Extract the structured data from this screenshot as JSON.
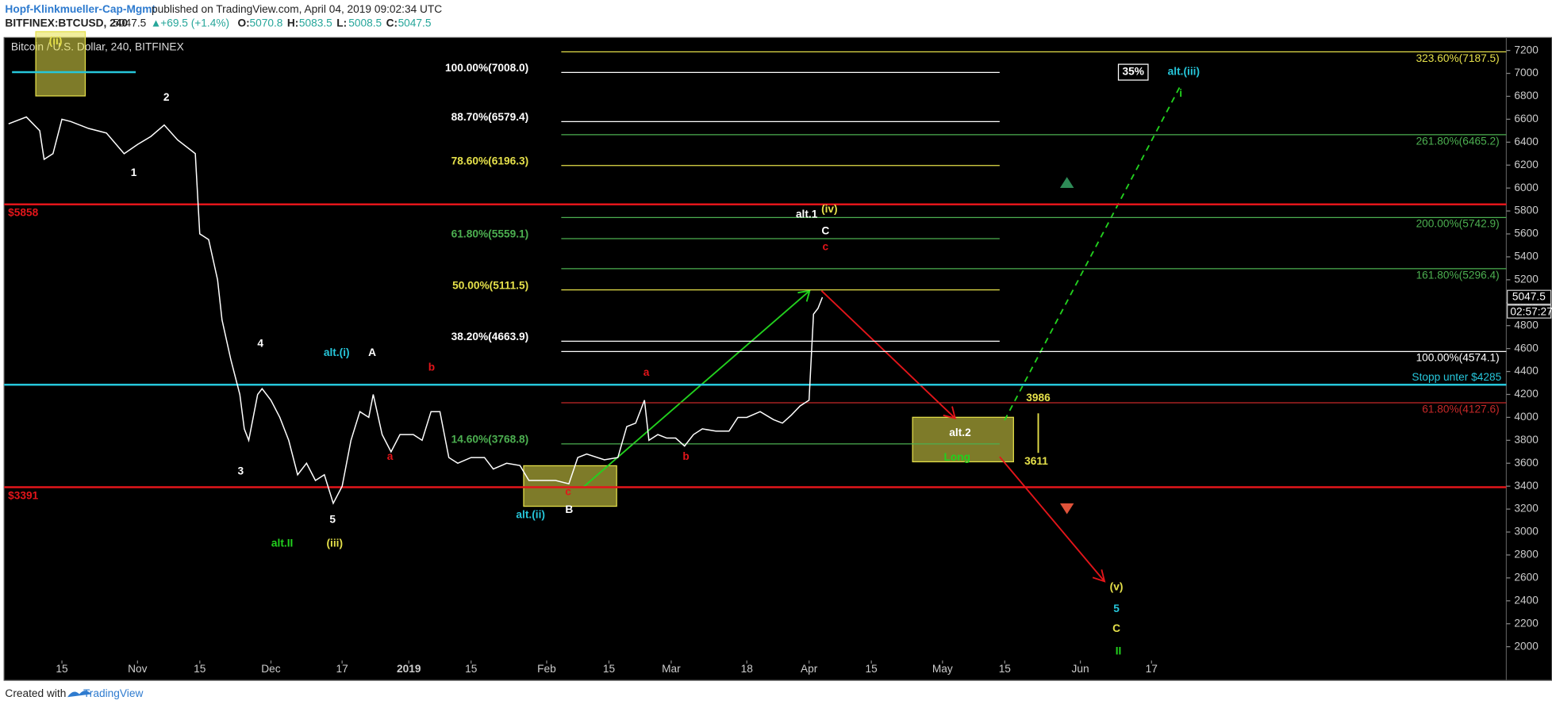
{
  "header": {
    "author": "Hopf-Klinkmueller-Cap-Mgmt",
    "published": "published on TradingView.com, April 04, 2019 09:02:34 UTC",
    "symbol": "BITFINEX:BTCUSD, 240",
    "last": 5047.5,
    "change": "+69.5 (+1.4%)",
    "ohlc": [
      {
        "label": "O:",
        "value": 5070.8
      },
      {
        "label": "H:",
        "value": 5083.5
      },
      {
        "label": "L:",
        "value": 5008.5
      },
      {
        "label": "C:",
        "value": 5047.5
      }
    ]
  },
  "chart_data": {
    "type": "line",
    "title": "Bitcoin / U.S. Dollar, 240, BITFINEX",
    "color": "#ffffff",
    "x": [
      "2018-10-03",
      "2018-10-07",
      "2018-10-10",
      "2018-10-11",
      "2018-10-13",
      "2018-10-15",
      "2018-10-17",
      "2018-10-21",
      "2018-10-25",
      "2018-10-29",
      "2018-11-01",
      "2018-11-04",
      "2018-11-07",
      "2018-11-10",
      "2018-11-14",
      "2018-11-15",
      "2018-11-17",
      "2018-11-19",
      "2018-11-20",
      "2018-11-22",
      "2018-11-24",
      "2018-11-25",
      "2018-11-26",
      "2018-11-28",
      "2018-11-29",
      "2018-12-01",
      "2018-12-03",
      "2018-12-05",
      "2018-12-07",
      "2018-12-09",
      "2018-12-11",
      "2018-12-13",
      "2018-12-15",
      "2018-12-17",
      "2018-12-19",
      "2018-12-21",
      "2018-12-23",
      "2018-12-24",
      "2018-12-26",
      "2018-12-28",
      "2018-12-30",
      "2019-01-02",
      "2019-01-04",
      "2019-01-06",
      "2019-01-08",
      "2019-01-10",
      "2019-01-12",
      "2019-01-15",
      "2019-01-18",
      "2019-01-20",
      "2019-01-23",
      "2019-01-26",
      "2019-01-28",
      "2019-01-31",
      "2019-02-03",
      "2019-02-06",
      "2019-02-08",
      "2019-02-10",
      "2019-02-14",
      "2019-02-17",
      "2019-02-19",
      "2019-02-21",
      "2019-02-23",
      "2019-02-24",
      "2019-02-26",
      "2019-02-28",
      "2019-03-02",
      "2019-03-04",
      "2019-03-06",
      "2019-03-08",
      "2019-03-11",
      "2019-03-14",
      "2019-03-16",
      "2019-03-18",
      "2019-03-21",
      "2019-03-24",
      "2019-03-26",
      "2019-03-28",
      "2019-03-30",
      "2019-04-01",
      "2019-04-02",
      "2019-04-03",
      "2019-04-04"
    ],
    "values": [
      6560,
      6620,
      6500,
      6250,
      6300,
      6600,
      6580,
      6520,
      6480,
      6300,
      6380,
      6450,
      6550,
      6420,
      6300,
      5600,
      5550,
      5200,
      4850,
      4500,
      4200,
      3900,
      3800,
      4200,
      4250,
      4150,
      4000,
      3800,
      3500,
      3600,
      3450,
      3500,
      3250,
      3400,
      3800,
      4050,
      4000,
      4200,
      3850,
      3700,
      3850,
      3850,
      3800,
      4050,
      4050,
      3650,
      3600,
      3650,
      3650,
      3550,
      3600,
      3580,
      3450,
      3450,
      3450,
      3420,
      3650,
      3680,
      3630,
      3650,
      3920,
      3950,
      4150,
      3800,
      3850,
      3820,
      3820,
      3750,
      3850,
      3900,
      3880,
      3880,
      4000,
      4000,
      4050,
      3980,
      3950,
      4020,
      4100,
      4150,
      4900,
      4950,
      5047.5
    ],
    "xlim": [
      "2018-10-02",
      "2019-09-05"
    ],
    "xticks": [
      {
        "value": "2018-10-15",
        "label": "15"
      },
      {
        "value": "2018-11-01",
        "label": "Nov"
      },
      {
        "value": "2018-11-15",
        "label": "15"
      },
      {
        "value": "2018-12-01",
        "label": "Dec"
      },
      {
        "value": "2018-12-17",
        "label": "17"
      },
      {
        "value": "2019-01-01",
        "label": "2019"
      },
      {
        "value": "2019-01-15",
        "label": "15"
      },
      {
        "value": "2019-02-01",
        "label": "Feb"
      },
      {
        "value": "2019-02-15",
        "label": "15"
      },
      {
        "value": "2019-03-01",
        "label": "Mar"
      },
      {
        "value": "2019-03-18",
        "label": "18"
      },
      {
        "value": "2019-04-01",
        "label": "Apr"
      },
      {
        "value": "2019-04-15",
        "label": "15"
      },
      {
        "value": "2019-05-01",
        "label": "May"
      },
      {
        "value": "2019-05-15",
        "label": "15"
      },
      {
        "value": "2019-06-01",
        "label": "Jun"
      },
      {
        "value": "2019-06-17",
        "label": "17"
      }
    ],
    "ylim": [
      1724,
      7295
    ],
    "yticks": [
      2000,
      2200,
      2400,
      2600,
      2800,
      3000,
      3200,
      3400,
      3600,
      3800,
      4000,
      4200,
      4400,
      4600,
      4800,
      5000,
      5200,
      5400,
      5600,
      5800,
      6000,
      6200,
      6400,
      6600,
      6800,
      7000,
      7200
    ],
    "price_tag": {
      "value": 5047.5,
      "countdown": "02:57:27"
    },
    "horizontal_lines": [
      {
        "value": 5858,
        "label": "$5858",
        "color": "#e3151a"
      },
      {
        "value": 3391,
        "label": "$3391",
        "color": "#e3151a"
      },
      {
        "value": 4285,
        "label": "Stopp unter $4285",
        "color": "#26c6da"
      }
    ],
    "fib_retracement": [
      {
        "value": 7008.0,
        "label": "100.00%(7008.0)",
        "color": "#ffffff"
      },
      {
        "value": 6579.4,
        "label": "88.70%(6579.4)",
        "color": "#ffffff"
      },
      {
        "value": 6196.3,
        "label": "78.60%(6196.3)",
        "color": "#e5e04a"
      },
      {
        "value": 5559.1,
        "label": "61.80%(5559.1)",
        "color": "#4caf50"
      },
      {
        "value": 5111.5,
        "label": "50.00%(5111.5)",
        "color": "#e5e04a"
      },
      {
        "value": 4663.9,
        "label": "38.20%(4663.9)",
        "color": "#ffffff"
      },
      {
        "value": 3768.8,
        "label": "14.60%(3768.8)",
        "color": "#4caf50"
      }
    ],
    "fib_extension": [
      {
        "value": 7187.5,
        "label": "323.60%(7187.5)",
        "color": "#e5e04a"
      },
      {
        "value": 6465.2,
        "label": "261.80%(6465.2)",
        "color": "#4caf50"
      },
      {
        "value": 5742.9,
        "label": "200.00%(5742.9)",
        "color": "#4caf50"
      },
      {
        "value": 5296.4,
        "label": "161.80%(5296.4)",
        "color": "#4caf50"
      },
      {
        "value": 4574.1,
        "label": "100.00%(4574.1)",
        "color": "#ffffff"
      },
      {
        "value": 4127.6,
        "label": "61.80%(4127.6)",
        "color": "#c62828"
      }
    ],
    "annotations": [
      {
        "text": "(ii)",
        "color": "#e5e04a"
      },
      {
        "text": "2",
        "color": "#ffffff"
      },
      {
        "text": "1",
        "color": "#ffffff"
      },
      {
        "text": "4",
        "color": "#ffffff"
      },
      {
        "text": "3",
        "color": "#ffffff"
      },
      {
        "text": "5",
        "color": "#ffffff"
      },
      {
        "text": "alt.II",
        "color": "#22d11e"
      },
      {
        "text": "(iii)",
        "color": "#e5e04a"
      },
      {
        "text": "alt.(i)",
        "color": "#26c6da"
      },
      {
        "text": "A",
        "color": "#ffffff"
      },
      {
        "text": "b",
        "color": "#e3151a"
      },
      {
        "text": "a",
        "color": "#e3151a"
      },
      {
        "text": "alt.(ii)",
        "color": "#26c6da"
      },
      {
        "text": "B",
        "color": "#ffffff"
      },
      {
        "text": "c",
        "color": "#e3151a"
      },
      {
        "text": "a",
        "color": "#e3151a"
      },
      {
        "text": "b",
        "color": "#e3151a"
      },
      {
        "text": "alt.1",
        "color": "#ffffff"
      },
      {
        "text": "(iv)",
        "color": "#e5e04a"
      },
      {
        "text": "C",
        "color": "#ffffff"
      },
      {
        "text": "c",
        "color": "#e3151a"
      },
      {
        "text": "35%",
        "color": "#ffffff"
      },
      {
        "text": "alt.(iii)",
        "color": "#26c6da"
      },
      {
        "text": "i",
        "color": "#22d11e"
      },
      {
        "text": "3986",
        "color": "#e5e04a"
      },
      {
        "text": "3611",
        "color": "#e5e04a"
      },
      {
        "text": "alt.2",
        "color": "#ffffff"
      },
      {
        "text": "Long",
        "color": "#22d11e"
      },
      {
        "text": "(v)",
        "color": "#e5e04a"
      },
      {
        "text": "5",
        "color": "#26c6da"
      },
      {
        "text": "C",
        "color": "#e5e04a"
      },
      {
        "text": "II",
        "color": "#22d11e"
      }
    ]
  },
  "footer": {
    "created_with": "Created with",
    "brand": "TradingView"
  }
}
